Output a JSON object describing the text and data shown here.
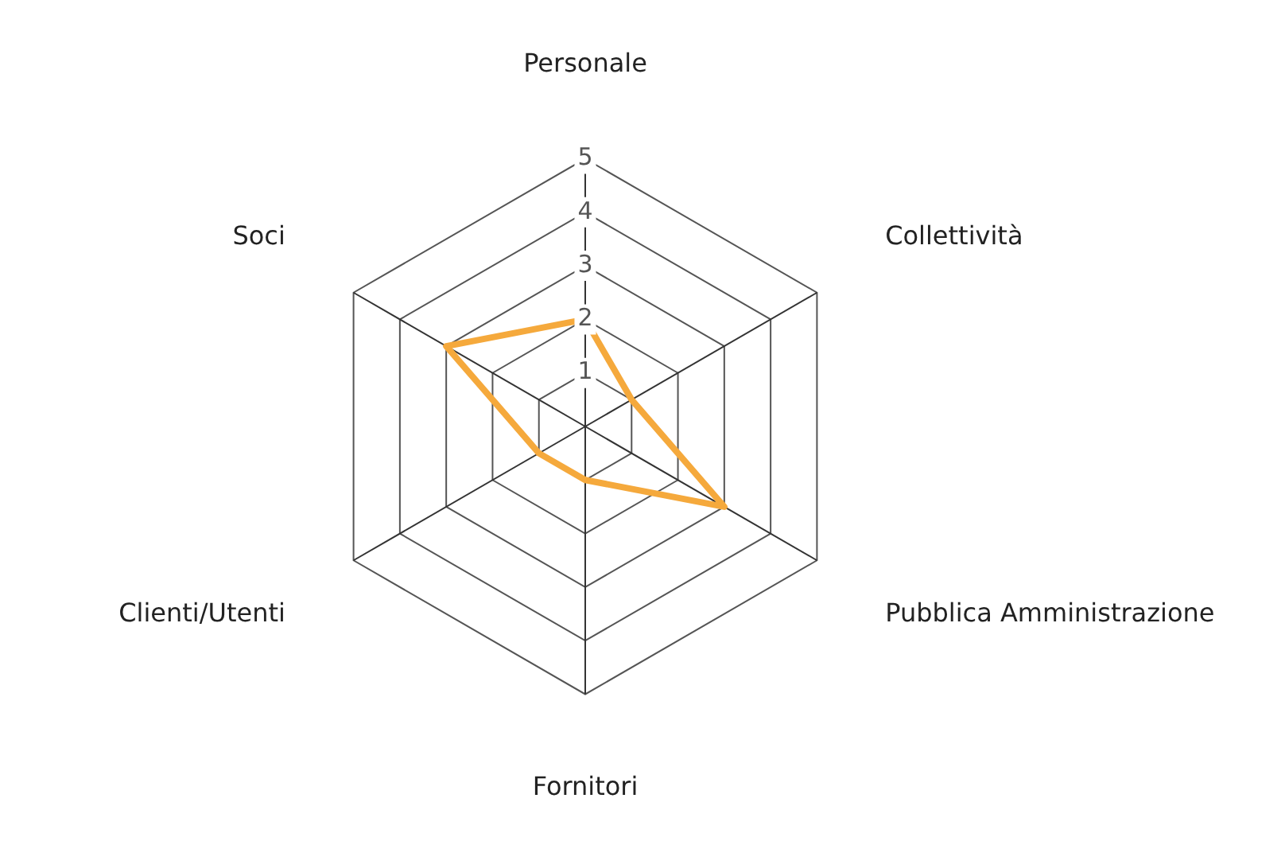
{
  "chart_data": {
    "type": "radar",
    "categories": [
      "Personale",
      "Collettività",
      "Pubblica Amministrazione",
      "Fornitori",
      "Clienti/Utenti",
      "Soci"
    ],
    "series": [
      {
        "color": "#f5a93c",
        "values": [
          2,
          1,
          3,
          1,
          1,
          3
        ]
      }
    ],
    "ylim": [
      0,
      5
    ],
    "yticks": [
      1,
      2,
      3,
      4,
      5
    ],
    "grid": true,
    "legend": false,
    "marker": "none",
    "line_style": "solid"
  }
}
